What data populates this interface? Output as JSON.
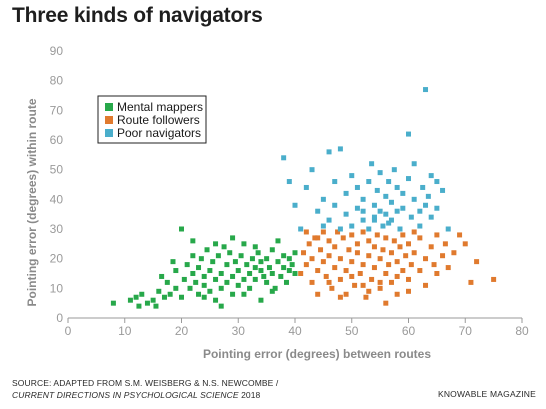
{
  "title": "Three kinds of navigators",
  "source": {
    "line1": "SOURCE: ADAPTED FROM S.M. WEISBERG & N.S. NEWCOMBE /",
    "journal": "CURRENT DIRECTIONS IN PSYCHOLOGICAL SCIENCE",
    "year": " 2018"
  },
  "brand": "KNOWABLE MAGAZINE",
  "chart_data": {
    "type": "scatter",
    "title": "Three kinds of navigators",
    "xlabel": "Pointing error (degrees) between routes",
    "ylabel": "Pointing error (degrees) within route",
    "xlim": [
      0,
      80
    ],
    "ylim": [
      0,
      90
    ],
    "xticks": [
      0,
      10,
      20,
      30,
      40,
      50,
      60,
      70,
      80
    ],
    "yticks": [
      0,
      10,
      20,
      30,
      40,
      50,
      60,
      70,
      80,
      90
    ],
    "grid": false,
    "legend_position": "top-left",
    "series": [
      {
        "name": "Mental mappers",
        "color": "#27a84a",
        "points": [
          [
            8,
            5
          ],
          [
            11,
            6
          ],
          [
            12,
            7
          ],
          [
            12.5,
            4
          ],
          [
            13,
            8
          ],
          [
            14,
            5
          ],
          [
            15,
            6
          ],
          [
            15.5,
            4
          ],
          [
            16,
            9
          ],
          [
            16.5,
            14
          ],
          [
            17,
            7
          ],
          [
            17.5,
            12
          ],
          [
            18,
            8
          ],
          [
            18.5,
            19
          ],
          [
            19,
            10
          ],
          [
            19,
            16
          ],
          [
            20,
            30
          ],
          [
            20,
            7
          ],
          [
            20.5,
            13
          ],
          [
            21,
            18
          ],
          [
            21.5,
            10
          ],
          [
            22,
            15
          ],
          [
            22,
            21
          ],
          [
            22.5,
            12
          ],
          [
            23,
            8
          ],
          [
            23,
            17
          ],
          [
            23.5,
            20
          ],
          [
            24,
            11
          ],
          [
            24,
            14
          ],
          [
            24.5,
            23
          ],
          [
            25,
            9
          ],
          [
            25,
            16
          ],
          [
            25.5,
            19
          ],
          [
            26,
            6
          ],
          [
            26,
            13
          ],
          [
            26.5,
            21
          ],
          [
            27,
            10
          ],
          [
            27,
            15
          ],
          [
            27.5,
            24
          ],
          [
            28,
            12
          ],
          [
            28,
            18
          ],
          [
            28.5,
            22
          ],
          [
            29,
            8
          ],
          [
            29,
            14
          ],
          [
            29.5,
            19
          ],
          [
            30,
            11
          ],
          [
            30,
            16
          ],
          [
            30.5,
            21
          ],
          [
            31,
            13
          ],
          [
            31,
            25
          ],
          [
            31.5,
            18
          ],
          [
            32,
            10
          ],
          [
            32,
            15
          ],
          [
            32.5,
            20
          ],
          [
            33,
            17
          ],
          [
            33,
            13
          ],
          [
            33.5,
            22
          ],
          [
            34,
            16
          ],
          [
            34,
            19
          ],
          [
            34.5,
            14
          ],
          [
            35,
            12
          ],
          [
            35,
            20
          ],
          [
            35.5,
            17
          ],
          [
            36,
            23
          ],
          [
            36,
            15
          ],
          [
            36.5,
            10
          ],
          [
            37,
            19
          ],
          [
            37,
            26
          ],
          [
            37.5,
            14
          ],
          [
            38,
            17
          ],
          [
            38,
            21
          ],
          [
            38.5,
            12
          ],
          [
            39,
            16
          ],
          [
            39,
            20
          ],
          [
            39.5,
            18
          ],
          [
            40,
            15
          ],
          [
            40,
            22
          ],
          [
            31,
            8
          ],
          [
            27,
            4
          ],
          [
            24,
            7
          ],
          [
            22,
            26
          ],
          [
            34,
            6
          ],
          [
            29,
            27
          ],
          [
            36,
            9
          ],
          [
            33,
            24
          ],
          [
            26,
            25
          ]
        ]
      },
      {
        "name": "Route followers",
        "color": "#e07a2e",
        "points": [
          [
            41,
            15
          ],
          [
            41.5,
            22
          ],
          [
            42,
            18
          ],
          [
            42,
            29
          ],
          [
            42.5,
            25
          ],
          [
            43,
            12
          ],
          [
            43,
            20
          ],
          [
            43.5,
            27
          ],
          [
            44,
            16
          ],
          [
            44,
            8
          ],
          [
            44.5,
            23
          ],
          [
            45,
            19
          ],
          [
            45,
            29
          ],
          [
            45.5,
            14
          ],
          [
            46,
            21
          ],
          [
            46,
            26
          ],
          [
            46.5,
            10
          ],
          [
            47,
            17
          ],
          [
            47,
            24
          ],
          [
            47.5,
            29
          ],
          [
            48,
            13
          ],
          [
            48,
            20
          ],
          [
            48.5,
            27
          ],
          [
            49,
            8
          ],
          [
            49,
            16
          ],
          [
            49.5,
            23
          ],
          [
            50,
            19
          ],
          [
            50,
            28
          ],
          [
            50.5,
            11
          ],
          [
            51,
            22
          ],
          [
            51,
            25
          ],
          [
            51.5,
            15
          ],
          [
            52,
            18
          ],
          [
            52,
            29
          ],
          [
            52.5,
            7
          ],
          [
            53,
            21
          ],
          [
            53,
            26
          ],
          [
            53.5,
            13
          ],
          [
            54,
            17
          ],
          [
            54,
            24
          ],
          [
            54.5,
            28
          ],
          [
            55,
            10
          ],
          [
            55,
            20
          ],
          [
            55.5,
            23
          ],
          [
            56,
            15
          ],
          [
            56,
            27
          ],
          [
            56.5,
            18
          ],
          [
            57,
            12
          ],
          [
            57,
            22
          ],
          [
            57.5,
            26
          ],
          [
            58,
            8
          ],
          [
            58,
            19
          ],
          [
            58.5,
            24
          ],
          [
            59,
            16
          ],
          [
            59,
            28
          ],
          [
            59.5,
            21
          ],
          [
            60,
            13
          ],
          [
            60,
            25
          ],
          [
            60.5,
            18
          ],
          [
            61,
            22
          ],
          [
            61,
            29
          ],
          [
            62,
            16
          ],
          [
            62,
            27
          ],
          [
            63,
            20
          ],
          [
            63,
            11
          ],
          [
            64,
            24
          ],
          [
            64.5,
            18
          ],
          [
            65,
            28
          ],
          [
            65,
            15
          ],
          [
            66,
            21
          ],
          [
            66.5,
            25
          ],
          [
            67,
            17
          ],
          [
            68,
            22
          ],
          [
            69,
            28
          ],
          [
            70,
            25
          ],
          [
            71,
            12
          ],
          [
            72,
            19
          ],
          [
            75,
            13
          ],
          [
            48,
            7
          ],
          [
            53,
            9
          ],
          [
            56,
            5
          ],
          [
            46,
            12
          ],
          [
            50,
            14
          ],
          [
            55,
            12
          ],
          [
            60,
            9
          ],
          [
            44,
            27
          ],
          [
            52,
            11
          ],
          [
            58,
            14
          ]
        ]
      },
      {
        "name": "Poor navigators",
        "color": "#4aaecb",
        "points": [
          [
            38,
            54
          ],
          [
            39,
            46
          ],
          [
            40,
            38
          ],
          [
            41,
            30
          ],
          [
            42,
            44
          ],
          [
            43,
            50
          ],
          [
            44,
            36
          ],
          [
            45,
            40
          ],
          [
            45,
            31
          ],
          [
            46,
            56
          ],
          [
            46,
            33
          ],
          [
            47,
            46
          ],
          [
            47,
            38
          ],
          [
            48,
            57
          ],
          [
            48,
            30
          ],
          [
            49,
            42
          ],
          [
            49,
            35
          ],
          [
            50,
            31
          ],
          [
            50,
            48
          ],
          [
            51,
            44
          ],
          [
            51,
            37
          ],
          [
            52,
            40
          ],
          [
            52,
            33
          ],
          [
            53,
            46
          ],
          [
            53,
            30
          ],
          [
            53.5,
            52
          ],
          [
            54,
            38
          ],
          [
            54,
            34
          ],
          [
            54.5,
            43
          ],
          [
            55,
            36
          ],
          [
            55,
            49
          ],
          [
            55.5,
            31
          ],
          [
            56,
            41
          ],
          [
            56,
            35
          ],
          [
            56.5,
            46
          ],
          [
            57,
            33
          ],
          [
            57,
            39
          ],
          [
            57.5,
            50
          ],
          [
            58,
            36
          ],
          [
            58,
            44
          ],
          [
            58.5,
            30
          ],
          [
            59,
            42
          ],
          [
            59,
            37
          ],
          [
            60,
            62
          ],
          [
            60,
            47
          ],
          [
            60.5,
            34
          ],
          [
            61,
            40
          ],
          [
            61,
            52
          ],
          [
            62,
            36
          ],
          [
            62,
            31
          ],
          [
            62.5,
            44
          ],
          [
            63,
            77
          ],
          [
            63,
            38
          ],
          [
            63.5,
            41
          ],
          [
            64,
            34
          ],
          [
            64,
            48
          ],
          [
            65,
            46
          ],
          [
            65,
            37
          ],
          [
            66,
            43
          ],
          [
            67,
            30
          ],
          [
            56.5,
            32
          ],
          [
            54,
            33
          ],
          [
            52,
            36
          ]
        ]
      }
    ]
  }
}
